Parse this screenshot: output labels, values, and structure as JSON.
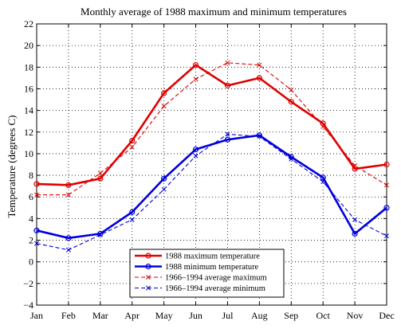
{
  "chart_data": {
    "type": "line",
    "title": "Monthly average of 1988 maximum and minimum temperatures",
    "xlabel": "",
    "ylabel": "Temperature (degrees C)",
    "categories": [
      "Jan",
      "Feb",
      "Mar",
      "Apr",
      "May",
      "Jun",
      "Jul",
      "Aug",
      "Sep",
      "Oct",
      "Nov",
      "Dec"
    ],
    "ylim": [
      -4,
      22
    ],
    "yticks": [
      -4,
      -2,
      0,
      2,
      4,
      6,
      8,
      10,
      12,
      14,
      16,
      18,
      20,
      22
    ],
    "grid": true,
    "legend_position": "bottom-center",
    "series": [
      {
        "name": "1988 maximum temperature",
        "color": "#e00000",
        "style": "solid-thick",
        "marker": "circle",
        "values": [
          7.2,
          7.1,
          7.7,
          11.2,
          15.6,
          18.2,
          16.3,
          17.0,
          14.8,
          12.8,
          8.6,
          9.0
        ]
      },
      {
        "name": "1988 minimum temperature",
        "color": "#0000dd",
        "style": "solid-thick",
        "marker": "circle",
        "values": [
          2.9,
          2.2,
          2.6,
          4.6,
          7.7,
          10.4,
          11.3,
          11.7,
          9.7,
          7.8,
          2.6,
          5.0
        ]
      },
      {
        "name": "1966–1994 average maximum",
        "color": "#e00000",
        "style": "dashed",
        "marker": "x",
        "values": [
          6.2,
          6.2,
          8.2,
          10.6,
          14.4,
          16.9,
          18.4,
          18.2,
          15.9,
          12.5,
          8.9,
          7.1
        ]
      },
      {
        "name": "1966–1994 average minimum",
        "color": "#0000dd",
        "style": "dashed",
        "marker": "x",
        "values": [
          1.7,
          1.1,
          2.5,
          3.9,
          6.7,
          9.8,
          11.8,
          11.6,
          9.5,
          7.4,
          3.9,
          2.4
        ]
      }
    ]
  }
}
